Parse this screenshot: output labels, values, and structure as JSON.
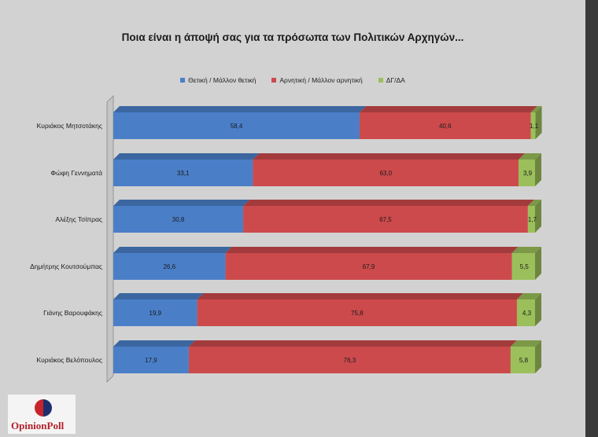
{
  "chart_data": {
    "type": "bar",
    "orientation": "horizontal",
    "stacked": true,
    "title": "Ποια είναι η άποψή σας για τα πρόσωπα των Πολιτικών Αρχηγών...",
    "categories": [
      "Κυριάκος Μητσοτάκης",
      "Φώφη Γεννηματά",
      "Αλέξης Τσίπρας",
      "Δημήτρης Κουτσούμπας",
      "Γιάνης Βαρουφάκης",
      "Κυριάκος Βελόπουλος"
    ],
    "series": [
      {
        "name": "Θετική / Μάλλον θετική",
        "values": [
          58.4,
          33.1,
          30.8,
          26.6,
          19.9,
          17.9
        ],
        "labels": [
          "58,4",
          "33,1",
          "30,8",
          "26,6",
          "19,9",
          "17,9"
        ],
        "color": "#4a7fc8"
      },
      {
        "name": "Αρνητική / Μάλλον αρνητική",
        "values": [
          40.6,
          63.0,
          67.5,
          67.9,
          75.8,
          76.3
        ],
        "labels": [
          "40,6",
          "63,0",
          "67,5",
          "67,9",
          "75,8",
          "76,3"
        ],
        "color": "#cc4a4c"
      },
      {
        "name": "ΔΓ/ΔΑ",
        "values": [
          1.1,
          3.9,
          1.7,
          5.5,
          4.3,
          5.8
        ],
        "labels": [
          "1,1",
          "3,9",
          "1,7",
          "5,5",
          "4,3",
          "5,8"
        ],
        "color": "#9bbf5a"
      }
    ],
    "xlim": [
      0,
      100
    ],
    "legend_position": "top-center",
    "grid": false
  },
  "logo": {
    "text": "OpinionPoll"
  }
}
